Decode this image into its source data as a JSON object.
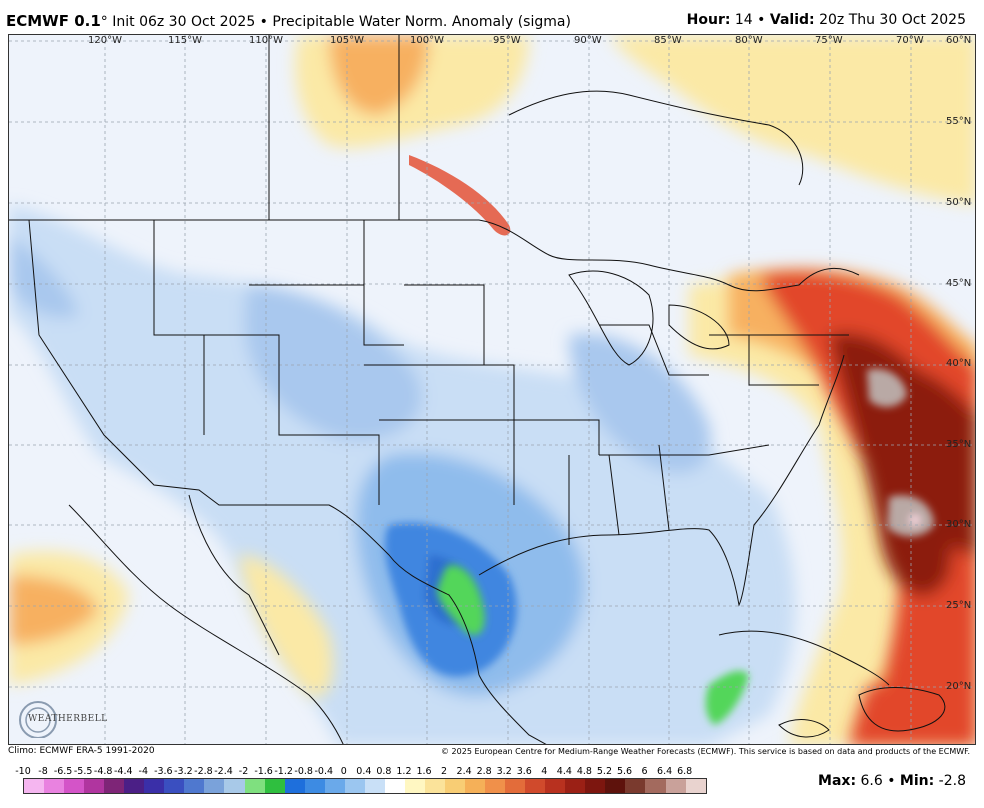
{
  "header": {
    "model": "ECMWF 0.1",
    "degree": "°",
    "init_text": " Init 06z 30 Oct 2025 • Precipitable Water Norm. Anomaly (sigma)",
    "hour_label": "Hour:",
    "hour_value": " 14 • ",
    "valid_label": "Valid:",
    "valid_value": " 20z Thu 30 Oct 2025"
  },
  "map": {
    "longitudes": [
      "120°W",
      "115°W",
      "110°W",
      "105°W",
      "100°W",
      "95°W",
      "90°W",
      "85°W",
      "80°W",
      "75°W",
      "70°W"
    ],
    "latitudes": [
      "60°N",
      "55°N",
      "50°N",
      "45°N",
      "40°N",
      "35°N",
      "30°N",
      "25°N",
      "20°N"
    ],
    "anomaly_colors": {
      "neutral": "#eef3fb",
      "light_blue": "#c9def5",
      "mid_blue": "#8fbcec",
      "deep_blue": "#3f86e0",
      "green": "#52d65a",
      "yellow": "#fbe9a6",
      "orange": "#f7b061",
      "red": "#e2472a",
      "dark_red": "#8c1b0d"
    }
  },
  "footer": {
    "climo": "Climo: ECMWF ERA-5 1991-2020",
    "copyright": "© 2025 European Centre for Medium-Range Weather Forecasts (ECMWF). This service is based on data and products of the ECMWF."
  },
  "colorbar": {
    "labels": [
      "-10",
      "-8",
      "-6.5",
      "-5.5",
      "-4.8",
      "-4.4",
      "-4",
      "-3.6",
      "-3.2",
      "-2.8",
      "-2.4",
      "-2",
      "-1.6",
      "-1.2",
      "-0.8",
      "-0.4",
      "0",
      "0.4",
      "0.8",
      "1.2",
      "1.6",
      "2",
      "2.4",
      "2.8",
      "3.2",
      "3.6",
      "4",
      "4.4",
      "4.8",
      "5.2",
      "5.6",
      "6",
      "6.4",
      "6.8"
    ],
    "colors": [
      "#f5b6f0",
      "#e982e0",
      "#d454c8",
      "#b0359f",
      "#7e2577",
      "#4b1f86",
      "#3a2fa8",
      "#3a4fc0",
      "#4f78cf",
      "#7aa2da",
      "#a8c9e8",
      "#7fe07f",
      "#2fbf3f",
      "#1e6fdc",
      "#3d8be3",
      "#6aa9ea",
      "#9bc6f0",
      "#c9e0f7",
      "#ffffff",
      "#fff7c2",
      "#fbe39a",
      "#f8cd74",
      "#f5b058",
      "#f0904a",
      "#e36c3a",
      "#d04a2c",
      "#b8311f",
      "#9b2015",
      "#7d160f",
      "#5e120c",
      "#7a3a2e",
      "#a36a5e",
      "#c9a19a",
      "#e9d3cf"
    ]
  },
  "stats": {
    "max_label": "Max:",
    "max_value": " 6.6 • ",
    "min_label": "Min:",
    "min_value": " -2.8"
  },
  "logo_text": "WEATHERBELL"
}
